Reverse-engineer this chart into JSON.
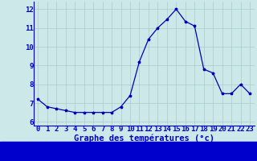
{
  "x": [
    0,
    1,
    2,
    3,
    4,
    5,
    6,
    7,
    8,
    9,
    10,
    11,
    12,
    13,
    14,
    15,
    16,
    17,
    18,
    19,
    20,
    21,
    22,
    23
  ],
  "y": [
    7.2,
    6.8,
    6.7,
    6.6,
    6.5,
    6.5,
    6.5,
    6.5,
    6.5,
    6.8,
    7.4,
    9.2,
    10.4,
    11.0,
    11.45,
    12.0,
    11.35,
    11.1,
    8.8,
    8.6,
    7.5,
    7.5,
    8.0,
    7.5
  ],
  "line_color": "#0000bb",
  "marker": "*",
  "marker_size": 2.5,
  "bg_color": "#cce8e8",
  "grid_color": "#aacaca",
  "xlabel": "Graphe des températures (°c)",
  "xlabel_fontsize": 7.5,
  "xlabel_color": "#0000cc",
  "tick_color": "#0000cc",
  "tick_fontsize": 6.5,
  "ylim": [
    5.8,
    12.4
  ],
  "xlim": [
    -0.5,
    23.5
  ],
  "yticks": [
    6,
    7,
    8,
    9,
    10,
    11,
    12
  ],
  "xticks": [
    0,
    1,
    2,
    3,
    4,
    5,
    6,
    7,
    8,
    9,
    10,
    11,
    12,
    13,
    14,
    15,
    16,
    17,
    18,
    19,
    20,
    21,
    22,
    23
  ],
  "spine_color": "#0000cc",
  "fig_bg": "#cce8e8",
  "bottom_bar_color": "#0000cc",
  "bottom_bar_height": 0.12
}
